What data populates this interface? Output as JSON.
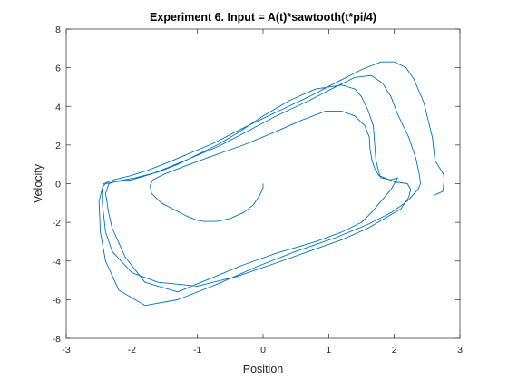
{
  "chart_data": {
    "type": "line",
    "title": "Experiment 6. Input = A(t)*sawtooth(t*pi/4)",
    "xlabel": "Position",
    "ylabel": "Velocity",
    "xlim": [
      -3,
      3
    ],
    "ylim": [
      -8,
      8
    ],
    "xticks": [
      "-3",
      "-2",
      "-1",
      "0",
      "1",
      "2",
      "3"
    ],
    "yticks": [
      "-8",
      "-6",
      "-4",
      "-2",
      "0",
      "2",
      "4",
      "6",
      "8"
    ],
    "grid": false,
    "legend": "none",
    "series": [
      {
        "color": "#0072BD",
        "x": [
          0.0,
          0.0,
          -0.05,
          -0.15,
          -0.3,
          -0.5,
          -0.7,
          -0.9,
          -1.0,
          -1.15,
          -1.35,
          -1.55,
          -1.7,
          -1.72,
          -1.68,
          -1.5,
          -1.2,
          -0.8,
          -0.3,
          0.2,
          0.6,
          0.95,
          1.2,
          1.4,
          1.55,
          1.62,
          1.63,
          1.66,
          1.7,
          1.75,
          1.8,
          1.95,
          2.05,
          1.95,
          1.8,
          1.65,
          1.5,
          1.2,
          0.8,
          0.2,
          -0.3,
          -0.8,
          -1.3,
          -1.8,
          -2.1,
          -2.3,
          -2.36,
          -2.38,
          -2.4,
          -2.35,
          -2.2,
          -1.95,
          -1.6,
          -1.3,
          -1.0,
          -0.7,
          -0.4,
          0.0,
          0.4,
          0.8,
          1.2,
          1.4,
          1.5,
          1.6,
          1.68,
          1.7,
          1.72,
          1.78,
          2.0,
          2.2,
          2.25,
          2.22,
          2.1,
          1.9,
          1.6,
          1.2,
          0.7,
          0.2,
          -0.4,
          -1.0,
          -1.6,
          -2.0,
          -2.3,
          -2.4,
          -2.45,
          -2.45,
          -2.4,
          -2.25,
          -2.0,
          -1.7,
          -1.4,
          -1.05,
          -0.7,
          -0.3,
          0.2,
          0.7,
          1.1,
          1.4,
          1.65,
          1.82,
          1.95,
          2.05,
          2.22,
          2.33,
          2.38,
          2.4,
          2.36,
          2.2,
          1.95,
          1.6,
          1.1,
          0.5,
          -0.1,
          -0.7,
          -1.3,
          -1.8,
          -2.2,
          -2.4,
          -2.48,
          -2.5,
          -2.43,
          -2.28,
          -2.03,
          -1.75,
          -1.45,
          -1.1,
          -0.75,
          -0.35,
          0.2,
          0.7,
          1.15,
          1.5,
          1.8,
          2.0,
          2.18,
          2.3,
          2.45,
          2.58,
          2.62,
          2.75,
          2.76,
          2.74,
          2.6
        ],
        "y": [
          0.0,
          -0.2,
          -0.6,
          -1.1,
          -1.5,
          -1.8,
          -1.95,
          -1.95,
          -1.9,
          -1.7,
          -1.35,
          -1.0,
          -0.5,
          -0.1,
          0.2,
          0.5,
          0.9,
          1.4,
          2.0,
          2.7,
          3.3,
          3.75,
          3.75,
          3.5,
          3.0,
          2.4,
          1.8,
          1.2,
          0.8,
          0.5,
          0.3,
          0.2,
          0.3,
          -0.3,
          -0.9,
          -1.5,
          -2.0,
          -2.5,
          -3.0,
          -3.6,
          -4.2,
          -4.9,
          -5.6,
          -5.1,
          -3.8,
          -2.3,
          -1.4,
          -0.9,
          -0.5,
          0.0,
          0.15,
          0.3,
          0.6,
          1.0,
          1.5,
          2.0,
          2.6,
          3.5,
          4.3,
          4.9,
          5.1,
          4.9,
          4.5,
          3.8,
          3.0,
          2.1,
          1.2,
          0.4,
          0.1,
          0.0,
          -0.3,
          -0.7,
          -1.3,
          -1.7,
          -2.3,
          -2.9,
          -3.5,
          -4.1,
          -4.8,
          -5.3,
          -5.1,
          -4.6,
          -3.5,
          -2.5,
          -1.0,
          -0.2,
          0.0,
          0.1,
          0.2,
          0.5,
          0.9,
          1.4,
          1.9,
          2.6,
          3.5,
          4.3,
          5.0,
          5.5,
          5.6,
          5.2,
          4.5,
          3.6,
          2.4,
          1.3,
          0.5,
          0.0,
          -0.3,
          -0.9,
          -1.5,
          -2.1,
          -2.8,
          -3.5,
          -4.3,
          -5.2,
          -6.0,
          -6.3,
          -5.5,
          -4.0,
          -2.5,
          -0.9,
          0.0,
          0.2,
          0.4,
          0.7,
          1.1,
          1.6,
          2.1,
          2.8,
          3.7,
          4.5,
          5.3,
          5.9,
          6.3,
          6.3,
          6.0,
          5.4,
          4.2,
          2.4,
          1.2,
          0.5,
          0.2,
          -0.4,
          -0.6
        ]
      }
    ]
  }
}
